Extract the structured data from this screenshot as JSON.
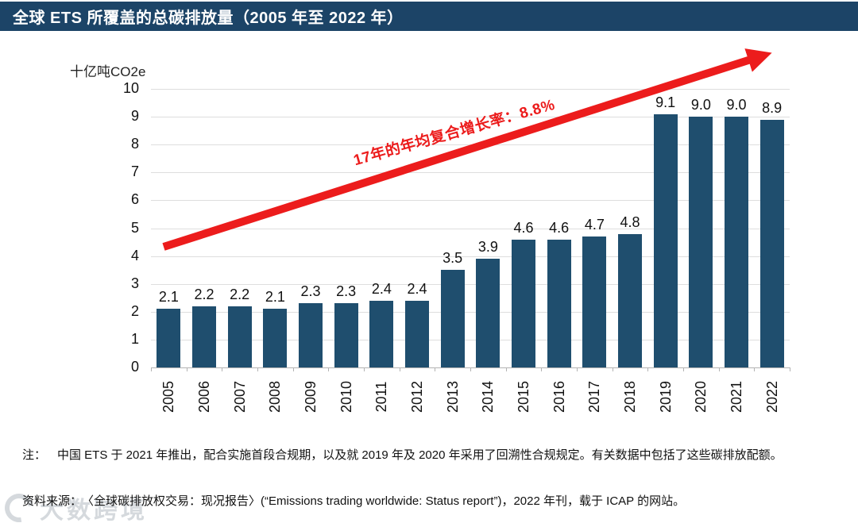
{
  "title": "全球 ETS 所覆盖的总碳排放量（2005 年至 2022 年）",
  "y_axis_unit": "十亿吨CO2e",
  "annotation": {
    "text": "17年的年均复合增长率：8.8%"
  },
  "notes": {
    "label": "注：",
    "text": "中国 ETS 于 2021 年推出，配合实施首段合规期，以及就 2019 年及 2020 年采用了回溯性合规规定。有关数据中包括了这些碳排放配额。"
  },
  "source": {
    "label": "资料来源：",
    "text": "〈全球碳排放权交易：现况报告〉(“Emissions trading worldwide: Status report”)，2022 年刊，载于 ICAP 的网站。"
  },
  "watermark": {
    "text": "大数跨境"
  },
  "colors": {
    "title_bar": "#1c4467",
    "bar": "#1f4e6e",
    "arrow": "#ec1c1c",
    "grid": "#dedede",
    "axis": "#b3b3b3"
  },
  "chart_data": {
    "type": "bar",
    "title": "全球 ETS 所覆盖的总碳排放量（2005 年至 2022 年）",
    "xlabel": "",
    "ylabel": "十亿吨CO2e",
    "categories": [
      "2005",
      "2006",
      "2007",
      "2008",
      "2009",
      "2010",
      "2011",
      "2012",
      "2013",
      "2014",
      "2015",
      "2016",
      "2017",
      "2018",
      "2019",
      "2020",
      "2021",
      "2022"
    ],
    "values": [
      2.1,
      2.2,
      2.2,
      2.1,
      2.3,
      2.3,
      2.4,
      2.4,
      3.5,
      3.9,
      4.6,
      4.6,
      4.7,
      4.8,
      9.1,
      9.0,
      9.0,
      8.9
    ],
    "ylim": [
      0,
      10
    ],
    "ytick_step": 1,
    "grid": true,
    "legend": false,
    "annotation": "17年的年均复合增长率：8.8%"
  }
}
